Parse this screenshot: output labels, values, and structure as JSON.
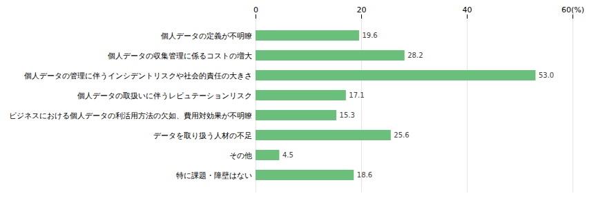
{
  "chart_data": {
    "type": "bar",
    "orientation": "horizontal",
    "categories": [
      "個人データの定義が不明瞭",
      "個人データの収集管理に係るコストの増大",
      "個人データの管理に伴うインシデントリスクや社会的責任の大きさ",
      "個人データの取扱いに伴うレピュテーションリスク",
      "ビジネスにおける個人データの利活用方法の欠如、費用対効果が不明瞭",
      "データを取り扱う人材の不足",
      "その他",
      "特に課題・障壁はない"
    ],
    "values": [
      19.6,
      28.2,
      53.0,
      17.1,
      15.3,
      25.6,
      4.5,
      18.6
    ],
    "value_labels": [
      "19.6",
      "28.2",
      "53.0",
      "17.1",
      "15.3",
      "25.6",
      "4.5",
      "18.6"
    ],
    "color": "#6abf7b",
    "xlim": [
      0,
      60
    ],
    "xticks": [
      0,
      20,
      40,
      {
        "value": 60,
        "label": "60(%)"
      }
    ],
    "grid": true,
    "data_labels": true
  }
}
